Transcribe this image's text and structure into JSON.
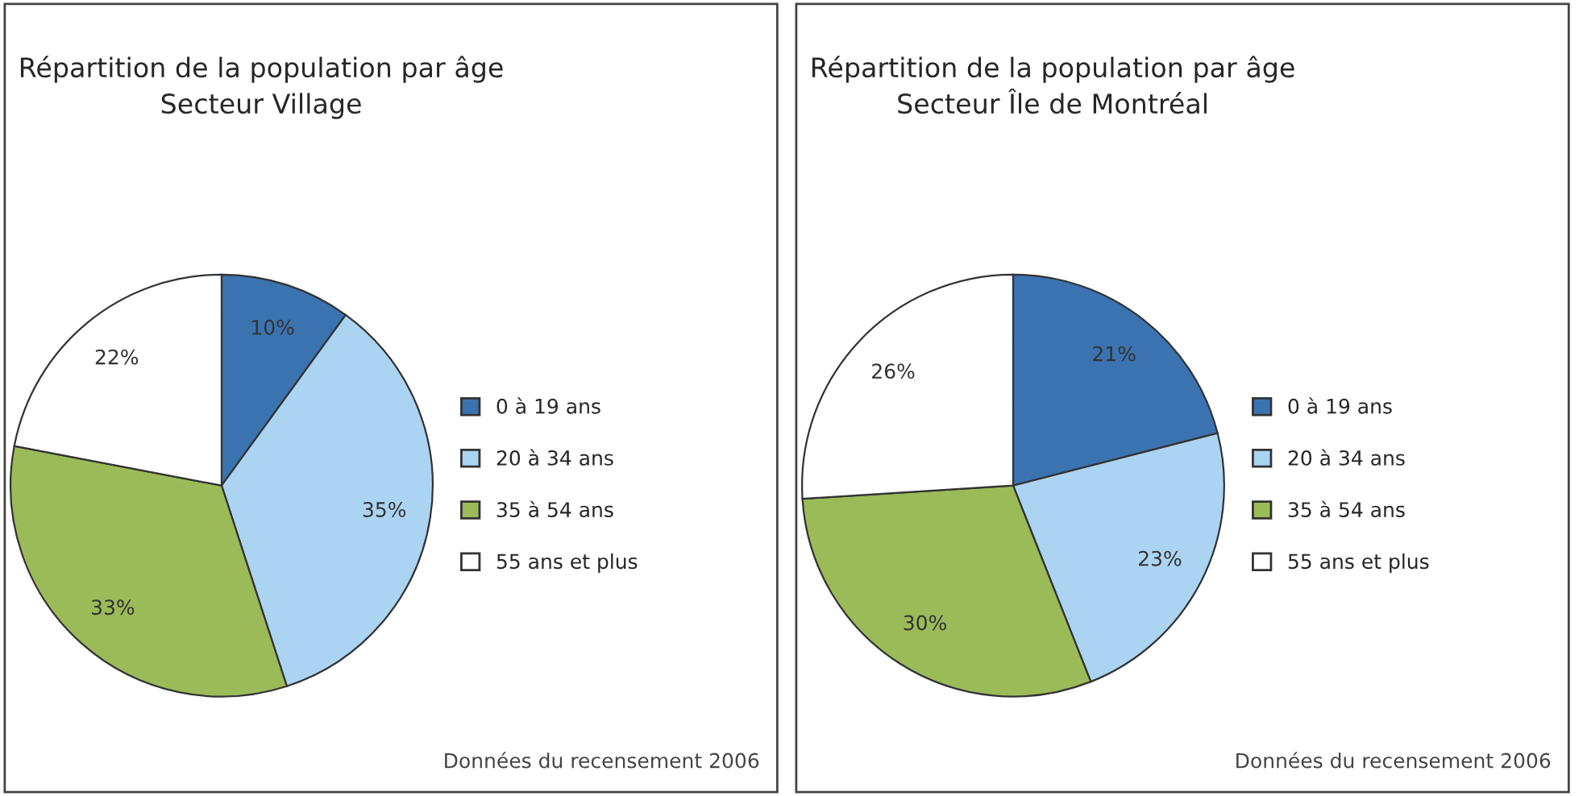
{
  "chart_data": [
    {
      "type": "pie",
      "title": "Répartition de la population par âge\nSecteur Village",
      "categories": [
        "0 à 19 ans",
        "20 à 34 ans",
        "35 à 54 ans",
        "55 ans et plus"
      ],
      "values": [
        10,
        35,
        33,
        22
      ],
      "value_labels": [
        "10%",
        "35%",
        "33%",
        "22%"
      ],
      "colors": [
        "#3b73b0",
        "#abd4f2",
        "#9bbb59",
        "#ffffff"
      ],
      "legend": "right",
      "annotations": [
        "Données du recensement 2006"
      ]
    },
    {
      "type": "pie",
      "title": "Répartition de la population par âge\nSecteur Île de Montréal",
      "categories": [
        "0 à 19 ans",
        "20 à 34 ans",
        "35 à 54 ans",
        "55 ans et plus"
      ],
      "values": [
        21,
        23,
        30,
        26
      ],
      "value_labels": [
        "21%",
        "23%",
        "30%",
        "26%"
      ],
      "colors": [
        "#3b73b0",
        "#abd4f2",
        "#9bbb59",
        "#ffffff"
      ],
      "legend": "right",
      "annotations": [
        "Données du recensement 2006"
      ]
    }
  ]
}
